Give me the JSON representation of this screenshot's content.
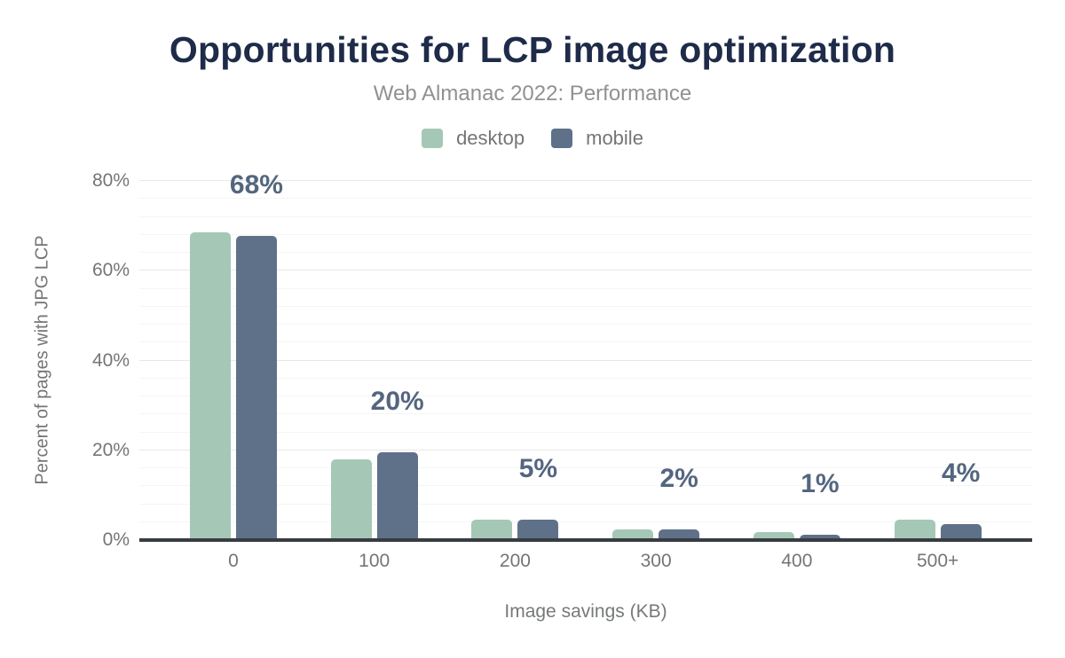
{
  "header": {
    "title": "Opportunities for LCP image optimization",
    "subtitle": "Web Almanac 2022: Performance"
  },
  "chart_data": {
    "type": "bar",
    "title": "Opportunities for LCP image optimization",
    "subtitle": "Web Almanac 2022: Performance",
    "xlabel": "Image savings (KB)",
    "ylabel": "Percent of pages with JPG LCP",
    "categories": [
      "0",
      "100",
      "200",
      "300",
      "400",
      "500+"
    ],
    "series": [
      {
        "name": "desktop",
        "color": "#a5c8b6",
        "values": [
          68.6,
          17.9,
          4.5,
          2.4,
          1.8,
          4.5
        ]
      },
      {
        "name": "mobile",
        "color": "#5f7189",
        "values": [
          67.8,
          19.6,
          4.5,
          2.4,
          1.2,
          3.6
        ]
      }
    ],
    "annotations": [
      "68%",
      "20%",
      "5%",
      "2%",
      "1%",
      "4%"
    ],
    "annotation_series": "mobile",
    "y_ticks": [
      "0%",
      "20%",
      "40%",
      "60%",
      "80%"
    ],
    "ylim": [
      0,
      80
    ],
    "grid": "horizontal, major every 20% with faint minor lines every 4%",
    "legend_position": "top center"
  },
  "colors": {
    "title_text": "#1e2b49",
    "subtitle_text": "#8f9193",
    "axis_text": "#757575",
    "annotation_text": "#54667f",
    "desktop_bar": "#a5c8b6",
    "mobile_bar": "#5f7189",
    "gridline_major": "#e8e8e8",
    "gridline_minor": "#f5f5f5",
    "axis_line": "#383c42",
    "background": "#ffffff"
  }
}
